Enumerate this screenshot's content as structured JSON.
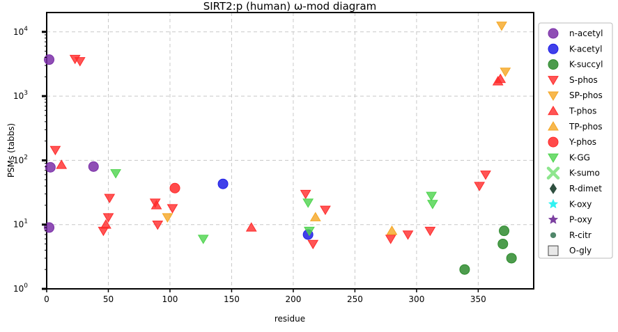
{
  "chart_data": {
    "type": "scatter",
    "title": "SIRT2:p (human) ω-mod diagram",
    "xlabel": "residue",
    "ylabel": "PSMs (tabbs)",
    "xlim": [
      0,
      395
    ],
    "ylim": [
      1,
      20000
    ],
    "yscale": "log",
    "x_ticks": [
      0,
      50,
      100,
      150,
      200,
      250,
      300,
      350
    ],
    "y_ticks": [
      {
        "value": 1,
        "base": "10",
        "exp": "0"
      },
      {
        "value": 10,
        "base": "10",
        "exp": "1"
      },
      {
        "value": 100,
        "base": "10",
        "exp": "2"
      },
      {
        "value": 1000,
        "base": "10",
        "exp": "3"
      },
      {
        "value": 10000,
        "base": "10",
        "exp": "4"
      }
    ],
    "grid": true,
    "legend_position": "outside-right",
    "series": [
      {
        "name": "n-acetyl",
        "marker": "circle",
        "color": "#7b2fa8",
        "points": [
          [
            2,
            3700
          ],
          [
            3,
            78
          ],
          [
            2,
            9
          ],
          [
            38,
            80
          ]
        ]
      },
      {
        "name": "K-acetyl",
        "marker": "circle",
        "color": "#1f1fe6",
        "points": [
          [
            143,
            43
          ],
          [
            212,
            7
          ]
        ]
      },
      {
        "name": "K-succyl",
        "marker": "circle",
        "color": "#2e8b2e",
        "points": [
          [
            339,
            2
          ],
          [
            371,
            8
          ],
          [
            370,
            5
          ],
          [
            377,
            3
          ]
        ]
      },
      {
        "name": "S-phos",
        "marker": "triangle-down",
        "color": "#ff2a2a",
        "points": [
          [
            23,
            3800
          ],
          [
            27,
            3500
          ],
          [
            7,
            145
          ],
          [
            51,
            26
          ],
          [
            50,
            13
          ],
          [
            46,
            8
          ],
          [
            88,
            22
          ],
          [
            90,
            10
          ],
          [
            102,
            18
          ],
          [
            210,
            30
          ],
          [
            216,
            5
          ],
          [
            226,
            17
          ],
          [
            279,
            6
          ],
          [
            293,
            7
          ],
          [
            311,
            8
          ],
          [
            351,
            40
          ],
          [
            356,
            60
          ]
        ]
      },
      {
        "name": "SP-phos",
        "marker": "triangle-down",
        "color": "#f5a623",
        "points": [
          [
            369,
            12500
          ],
          [
            372,
            2400
          ],
          [
            98,
            13
          ]
        ]
      },
      {
        "name": "T-phos",
        "marker": "triangle-up",
        "color": "#ff2a2a",
        "points": [
          [
            12,
            85
          ],
          [
            48,
            10
          ],
          [
            89,
            20
          ],
          [
            166,
            9
          ],
          [
            366,
            1700
          ],
          [
            368,
            1850
          ]
        ]
      },
      {
        "name": "TP-phos",
        "marker": "triangle-up",
        "color": "#f5a623",
        "points": [
          [
            218,
            13
          ],
          [
            280,
            8
          ]
        ]
      },
      {
        "name": "Y-phos",
        "marker": "circle",
        "color": "#ff2a2a",
        "points": [
          [
            104,
            37
          ]
        ]
      },
      {
        "name": "K-GG",
        "marker": "triangle-down",
        "color": "#4cd34c",
        "points": [
          [
            56,
            63
          ],
          [
            127,
            6
          ],
          [
            212,
            22
          ],
          [
            213,
            8
          ],
          [
            312,
            28
          ],
          [
            313,
            21
          ]
        ]
      },
      {
        "name": "K-sumo",
        "marker": "x",
        "color": "#8ee68e",
        "points": []
      },
      {
        "name": "R-dimet",
        "marker": "diamond",
        "color": "#2f4f3f",
        "points": []
      },
      {
        "name": "K-oxy",
        "marker": "star",
        "color": "#2ff2f2",
        "points": []
      },
      {
        "name": "P-oxy",
        "marker": "star",
        "color": "#7b3fa0",
        "points": []
      },
      {
        "name": "R-citr",
        "marker": "small-circle",
        "color": "#3d7a5a",
        "points": []
      },
      {
        "name": "O-gly",
        "marker": "square",
        "color": "#e8e8e8",
        "points": []
      }
    ]
  }
}
